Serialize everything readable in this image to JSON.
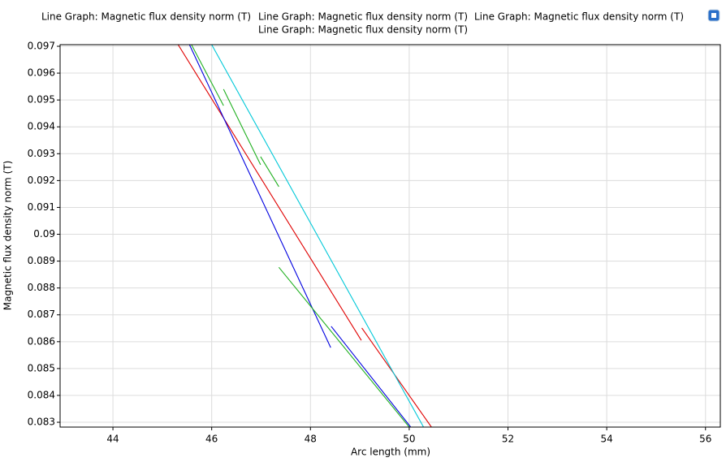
{
  "chart_data": {
    "type": "line",
    "xlabel": "Arc length (mm)",
    "ylabel": "Magnetic flux density norm (T)",
    "xlim": [
      42.93,
      56.3
    ],
    "ylim": [
      0.08282,
      0.09706
    ],
    "xticks": [
      44,
      46,
      48,
      50,
      52,
      54,
      56
    ],
    "yticks": [
      0.083,
      0.084,
      0.085,
      0.086,
      0.087,
      0.088,
      0.089,
      0.09,
      0.091,
      0.092,
      0.093,
      0.094,
      0.095,
      0.096,
      0.097
    ],
    "grid": true,
    "series": [
      {
        "name": "Line Graph: Magnetic flux density norm (T)",
        "color": "#e00000",
        "x": [
          45.32,
          49.03,
          null,
          49.04,
          50.45
        ],
        "values": [
          0.09706,
          0.08605,
          null,
          0.08651,
          0.08282
        ]
      },
      {
        "name": "Line Graph: Magnetic flux density norm (T)",
        "color": "#0000e0",
        "x": [
          45.55,
          48.41,
          null,
          48.42,
          50.03
        ],
        "values": [
          0.09706,
          0.08578,
          null,
          0.08657,
          0.08282
        ]
      },
      {
        "name": "Line Graph: Magnetic flux density norm (T)",
        "color": "#20b020",
        "x": [
          45.59,
          46.24,
          null,
          46.24,
          46.99,
          null,
          46.99,
          47.36,
          null,
          47.36,
          50.0
        ],
        "values": [
          0.09706,
          0.09479,
          null,
          0.0954,
          0.09259,
          null,
          0.09289,
          0.09177,
          null,
          0.08877,
          0.08282
        ]
      },
      {
        "name": "Line Graph: Magnetic flux density norm (T)",
        "color": "#00c8d8",
        "x": [
          46.0,
          50.29
        ],
        "values": [
          0.09706,
          0.08282
        ]
      }
    ]
  }
}
